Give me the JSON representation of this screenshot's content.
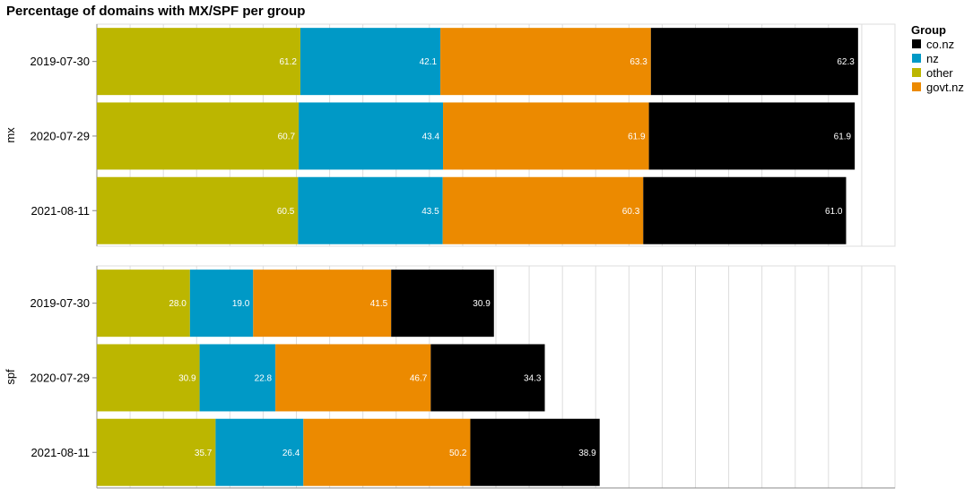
{
  "chart_data": {
    "type": "bar",
    "orientation": "horizontal",
    "stacked": true,
    "title": "Percentage of domains with MX/SPF per group",
    "xlabel": "",
    "xlim": [
      0,
      240
    ],
    "grid_step": 10,
    "categories": [
      "2019-07-30",
      "2020-07-29",
      "2021-08-11"
    ],
    "facet_label": "",
    "legend": {
      "title": "Group",
      "position": "top-right",
      "entries": [
        "co.nz",
        "nz",
        "other",
        "govt.nz"
      ]
    },
    "stack_order": [
      "other",
      "nz",
      "govt.nz",
      "co.nz"
    ],
    "colors": {
      "co.nz": "#000000",
      "nz": "#0099c6",
      "other": "#bcb600",
      "govt.nz": "#ec8a00"
    },
    "facets": [
      {
        "name": "mx",
        "series": [
          {
            "name": "other",
            "values": [
              61.2,
              60.7,
              60.5
            ]
          },
          {
            "name": "nz",
            "values": [
              42.1,
              43.4,
              43.5
            ]
          },
          {
            "name": "govt.nz",
            "values": [
              63.3,
              61.9,
              60.3
            ]
          },
          {
            "name": "co.nz",
            "values": [
              62.3,
              61.9,
              61.0
            ]
          }
        ]
      },
      {
        "name": "spf",
        "series": [
          {
            "name": "other",
            "values": [
              28.0,
              30.9,
              35.7
            ]
          },
          {
            "name": "nz",
            "values": [
              19.0,
              22.8,
              26.4
            ]
          },
          {
            "name": "govt.nz",
            "values": [
              41.5,
              46.7,
              50.2
            ]
          },
          {
            "name": "co.nz",
            "values": [
              30.9,
              34.3,
              38.9
            ]
          }
        ]
      }
    ]
  }
}
